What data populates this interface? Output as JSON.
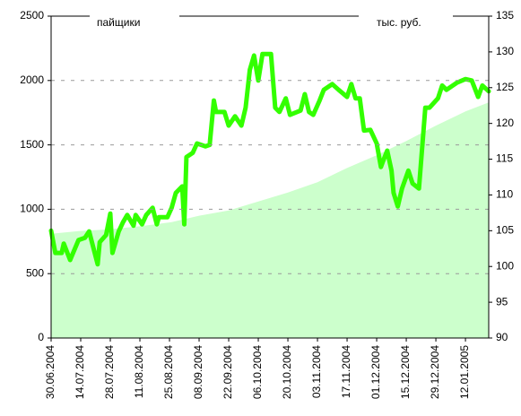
{
  "chart_data": {
    "type": "line",
    "xlim": [
      "30.06.2004",
      "23.01.2005"
    ],
    "xticks": [
      "30.06.2004",
      "14.07.2004",
      "28.07.2004",
      "11.08.2004",
      "25.08.2004",
      "08.09.2004",
      "22.09.2004",
      "06.10.2004",
      "20.10.2004",
      "03.11.2004",
      "17.11.2004",
      "01.12.2004",
      "15.12.2004",
      "29.12.2004",
      "12.01.2005"
    ],
    "ylim": [
      0,
      2500
    ],
    "yticks": [
      0,
      500,
      1000,
      1500,
      2000,
      2500
    ],
    "y2lim": [
      90,
      135
    ],
    "y2ticks": [
      90,
      95,
      100,
      105,
      110,
      115,
      120,
      125,
      130,
      135
    ],
    "grid": true,
    "series": [
      {
        "name": "пайщики",
        "type": "area",
        "color": "#ccffcc",
        "x": [
          "30.06.2004",
          "13.07.2004",
          "28.07.2004",
          "12.08.2004",
          "26.08.2004",
          "08.09.2004",
          "22.09.2004",
          "06.10.2004",
          "20.10.2004",
          "03.11.2004",
          "17.11.2004",
          "01.12.2004",
          "15.12.2004",
          "29.12.2004",
          "12.01.2005",
          "23.01.2005"
        ],
        "values": [
          810,
          830,
          845,
          870,
          900,
          950,
          990,
          1060,
          1130,
          1210,
          1320,
          1420,
          1530,
          1650,
          1760,
          1830
        ]
      },
      {
        "name": "тыс. руб.",
        "type": "line",
        "axis": "y2",
        "color": "#33ff00",
        "x": [
          "30.06.2004",
          "02.07.2004",
          "05.07.2004",
          "06.07.2004",
          "09.07.2004",
          "13.07.2004",
          "16.07.2004",
          "18.07.2004",
          "22.07.2004",
          "23.07.2004",
          "26.07.2004",
          "28.07.2004",
          "29.07.2004",
          "01.08.2004",
          "03.08.2004",
          "05.08.2004",
          "08.08.2004",
          "09.08.2004",
          "12.08.2004",
          "14.08.2004",
          "17.08.2004",
          "19.08.2004",
          "20.08.2004",
          "24.08.2004",
          "26.08.2004",
          "28.08.2004",
          "31.08.2004",
          "01.09.2004",
          "02.09.2004",
          "05.09.2004",
          "07.09.2004",
          "11.09.2004",
          "13.09.2004",
          "15.09.2004",
          "16.09.2004",
          "20.09.2004",
          "22.09.2004",
          "25.09.2004",
          "28.09.2004",
          "30.09.2004",
          "02.10.2004",
          "04.10.2004",
          "06.10.2004",
          "08.10.2004",
          "12.10.2004",
          "14.10.2004",
          "16.10.2004",
          "19.10.2004",
          "21.10.2004",
          "26.10.2004",
          "28.10.2004",
          "30.10.2004",
          "01.11.2004",
          "04.11.2004",
          "06.11.2004",
          "10.11.2004",
          "13.11.2004",
          "17.11.2004",
          "19.11.2004",
          "21.11.2004",
          "23.11.2004",
          "25.11.2004",
          "28.11.2004",
          "01.12.2004",
          "03.12.2004",
          "04.12.2004",
          "06.12.2004",
          "08.12.2004",
          "09.12.2004",
          "11.12.2004",
          "13.12.2004",
          "16.12.2004",
          "18.12.2004",
          "21.12.2004",
          "24.12.2004",
          "26.12.2004",
          "30.12.2004",
          "01.01.2005",
          "03.01.2005",
          "08.01.2005",
          "12.01.2005",
          "15.01.2005",
          "18.01.2005",
          "20.01.2005",
          "23.01.2005"
        ],
        "values": [
          105.0,
          101.9,
          101.9,
          103.2,
          100.9,
          103.7,
          104.0,
          104.9,
          100.3,
          103.4,
          104.4,
          107.4,
          101.9,
          104.9,
          106.2,
          107.2,
          105.7,
          107.2,
          105.9,
          107.2,
          108.2,
          105.9,
          106.9,
          106.9,
          108.2,
          110.3,
          111.2,
          105.9,
          115.3,
          115.9,
          117.2,
          116.8,
          117.0,
          123.2,
          121.6,
          121.6,
          119.7,
          121.0,
          119.7,
          122.2,
          127.5,
          129.5,
          126.0,
          129.7,
          129.7,
          122.2,
          121.6,
          123.5,
          121.2,
          121.8,
          124.1,
          121.6,
          121.2,
          123.2,
          124.7,
          125.5,
          124.7,
          123.7,
          125.5,
          123.5,
          123.5,
          119.0,
          119.1,
          117.2,
          113.9,
          114.7,
          116.2,
          113.4,
          110.3,
          108.4,
          110.9,
          113.4,
          111.6,
          110.9,
          122.2,
          122.2,
          123.5,
          125.3,
          124.7,
          125.7,
          126.2,
          126.0,
          123.7,
          125.3,
          124.5
        ]
      }
    ]
  }
}
